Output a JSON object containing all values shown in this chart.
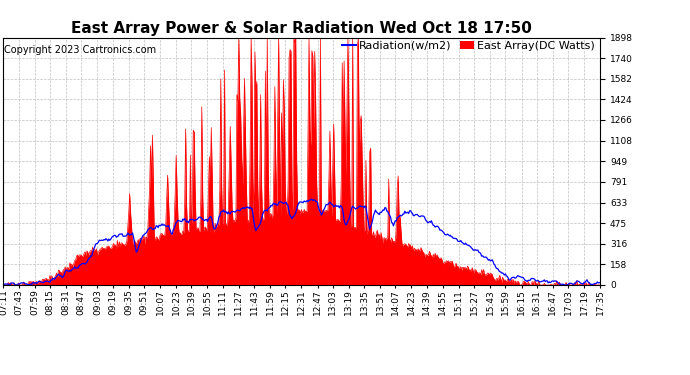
{
  "title": "East Array Power & Solar Radiation Wed Oct 18 17:50",
  "copyright": "Copyright 2023 Cartronics.com",
  "legend_radiation": "Radiation(w/m2)",
  "legend_east": "East Array(DC Watts)",
  "radiation_color": "blue",
  "east_color": "red",
  "ylabel_right_values": [
    0.0,
    158.2,
    316.4,
    474.6,
    632.8,
    791.1,
    949.3,
    1107.5,
    1265.7,
    1423.9,
    1582.1,
    1740.3,
    1898.5
  ],
  "ylim": [
    0,
    1898.5
  ],
  "bg_color": "#ffffff",
  "grid_color": "#b0b0b0",
  "border_color": "#000000",
  "time_labels": [
    "07:11",
    "07:43",
    "07:59",
    "08:15",
    "08:31",
    "08:47",
    "09:03",
    "09:19",
    "09:35",
    "09:51",
    "10:07",
    "10:23",
    "10:39",
    "10:55",
    "11:11",
    "11:27",
    "11:43",
    "11:59",
    "12:15",
    "12:31",
    "12:47",
    "13:03",
    "13:19",
    "13:35",
    "13:51",
    "14:07",
    "14:23",
    "14:39",
    "14:55",
    "15:11",
    "15:27",
    "15:43",
    "15:59",
    "16:15",
    "16:31",
    "16:47",
    "17:03",
    "17:19",
    "17:35"
  ],
  "title_fontsize": 11,
  "copyright_fontsize": 7,
  "legend_fontsize": 8,
  "tick_fontsize": 6.5
}
